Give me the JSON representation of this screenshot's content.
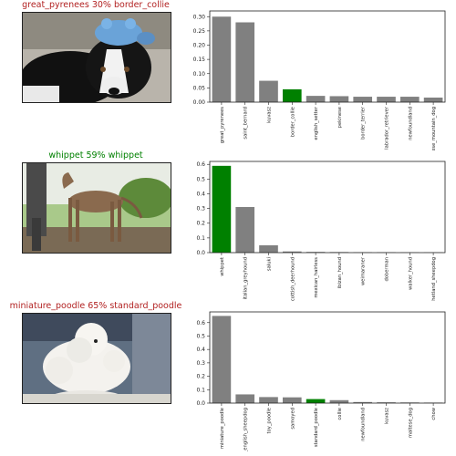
{
  "colors": {
    "correct": "#008000",
    "wrong": "#b22222",
    "bar_default": "#808080",
    "bar_highlight": "#008000"
  },
  "rows": [
    {
      "caption": "great_pyrenees 30% border_collie",
      "caption_color": "#b22222",
      "photo_subject": "border collie with blue toy on head",
      "chart_data": {
        "type": "bar",
        "categories": [
          "great_pyrenees",
          "saint_bernard",
          "kuvasz",
          "border_collie",
          "english_setter",
          "pekinese",
          "border_terrier",
          "labrador_retriever",
          "newfoundland",
          "bernese_mountain_dog"
        ],
        "values": [
          0.3,
          0.28,
          0.075,
          0.045,
          0.022,
          0.021,
          0.019,
          0.019,
          0.019,
          0.016
        ],
        "highlight_index": 3,
        "yticks": [
          "0.00",
          "0.05",
          "0.10",
          "0.15",
          "0.20",
          "0.25",
          "0.30"
        ],
        "ylim": [
          0,
          0.32
        ],
        "title": "",
        "xlabel": "",
        "ylabel": ""
      }
    },
    {
      "caption": "whippet 59% whippet",
      "caption_color": "#008000",
      "photo_subject": "whippet dog standing on grass",
      "chart_data": {
        "type": "bar",
        "categories": [
          "whippet",
          "italian_greyhound",
          "saluki",
          "scottish_deerhound",
          "mexican_hairless",
          "ibizan_hound",
          "weimaraner",
          "doberman",
          "walker_hound",
          "shetland_sheepdog"
        ],
        "values": [
          0.59,
          0.31,
          0.05,
          0.008,
          0.005,
          0.004,
          0.003,
          0.003,
          0.002,
          0.002
        ],
        "highlight_index": 0,
        "yticks": [
          "0.0",
          "0.1",
          "0.2",
          "0.3",
          "0.4",
          "0.5",
          "0.6"
        ],
        "ylim": [
          0,
          0.62
        ],
        "title": "",
        "xlabel": "",
        "ylabel": ""
      }
    },
    {
      "caption": "miniature_poodle 65% standard_poodle",
      "caption_color": "#b22222",
      "photo_subject": "white poodle",
      "chart_data": {
        "type": "bar",
        "categories": [
          "miniature_poodle",
          "old_english_sheepdog",
          "toy_poodle",
          "samoyed",
          "standard_poodle",
          "collie",
          "newfoundland",
          "kuvasz",
          "maltese_dog",
          "chow"
        ],
        "values": [
          0.65,
          0.065,
          0.045,
          0.043,
          0.03,
          0.022,
          0.008,
          0.006,
          0.005,
          0.004
        ],
        "highlight_index": 4,
        "yticks": [
          "0.0",
          "0.1",
          "0.2",
          "0.3",
          "0.4",
          "0.5",
          "0.6"
        ],
        "ylim": [
          0,
          0.68
        ],
        "title": "",
        "xlabel": "",
        "ylabel": ""
      }
    }
  ]
}
